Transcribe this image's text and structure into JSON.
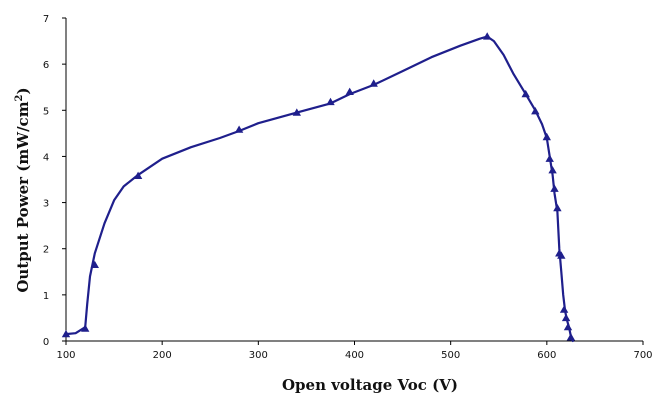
{
  "chart_data": {
    "type": "line",
    "xlabel": "Open voltage  Voc (V)",
    "ylabel": "Output Power  (mW/cm",
    "ylabel_superscript": "2",
    "ylabel_close": ")",
    "xlim": [
      100,
      700
    ],
    "ylim": [
      0,
      7
    ],
    "x_ticks": [
      100,
      200,
      300,
      400,
      500,
      600,
      700
    ],
    "y_ticks": [
      0,
      1,
      2,
      3,
      4,
      5,
      6,
      7
    ],
    "grid": false,
    "line_color": "#1f1f8c",
    "marker": "triangle",
    "curve": {
      "x": [
        100,
        110,
        120,
        122,
        125,
        130,
        140,
        150,
        160,
        175,
        200,
        230,
        260,
        280,
        300,
        340,
        375,
        395,
        420,
        450,
        480,
        510,
        530,
        538,
        545,
        555,
        565,
        578,
        588,
        595,
        600,
        603,
        606,
        608,
        611,
        613,
        615,
        617,
        619,
        621,
        623,
        625,
        627
      ],
      "y": [
        0.15,
        0.17,
        0.3,
        0.8,
        1.4,
        1.9,
        2.55,
        3.05,
        3.35,
        3.6,
        3.95,
        4.2,
        4.4,
        4.55,
        4.72,
        4.95,
        5.15,
        5.35,
        5.55,
        5.85,
        6.15,
        6.4,
        6.55,
        6.6,
        6.5,
        6.2,
        5.8,
        5.35,
        5.0,
        4.7,
        4.4,
        4.0,
        3.6,
        3.2,
        2.8,
        2.0,
        1.5,
        1.0,
        0.65,
        0.45,
        0.3,
        0.1,
        0.0
      ]
    },
    "markers": {
      "x": [
        100,
        120,
        130,
        175,
        280,
        340,
        375,
        395,
        420,
        538,
        578,
        588,
        600,
        603,
        606,
        608,
        611,
        613,
        615,
        618,
        620,
        622,
        625
      ],
      "y": [
        0.15,
        0.27,
        1.65,
        3.58,
        4.58,
        4.95,
        5.18,
        5.4,
        5.58,
        6.6,
        5.35,
        4.98,
        4.42,
        3.95,
        3.7,
        3.3,
        2.88,
        1.9,
        1.85,
        0.68,
        0.5,
        0.3,
        0.08
      ]
    }
  }
}
